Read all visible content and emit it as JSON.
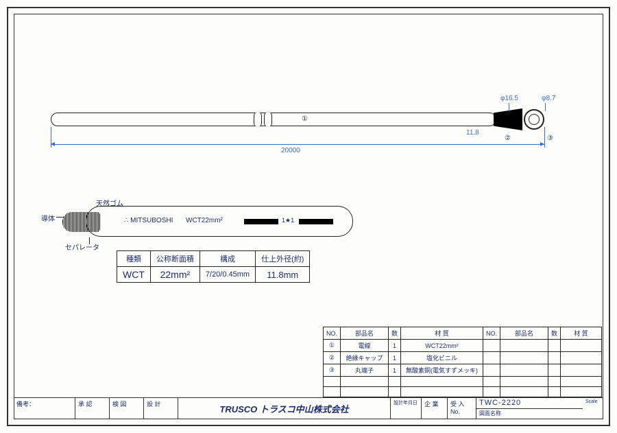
{
  "dimensions": {
    "length": "20000",
    "cap_len": "11.8",
    "dia1": "φ16.5",
    "dia2": "φ8.7"
  },
  "markers": {
    "m1": "①",
    "m2": "②",
    "m3": "③"
  },
  "cross_section": {
    "labels": {
      "conductor": "導体",
      "rubber": "天然ゴム",
      "separator": "セパレータ"
    },
    "print": {
      "brand": "∴ MITSUBOSHI",
      "spec": "WCT22mm²",
      "star": "1★1"
    }
  },
  "spec_table": {
    "headers": [
      "種類",
      "公称断面積",
      "構成",
      "仕上外径(約)"
    ],
    "row": [
      "WCT",
      "22mm²",
      "7/20/0.45mm",
      "11.8mm"
    ]
  },
  "bom": {
    "headers": [
      "NO.",
      "部品名",
      "数",
      "材 質",
      "NO.",
      "部品名",
      "数",
      "材 質"
    ],
    "rows": [
      [
        "①",
        "電線",
        "1",
        "WCT22mm²",
        "",
        "",
        "",
        ""
      ],
      [
        "②",
        "絶縁キャップ",
        "1",
        "塩化ビニル",
        "",
        "",
        "",
        ""
      ],
      [
        "③",
        "丸端子",
        "1",
        "無酸素銅(電気すずメッキ)",
        "",
        "",
        "",
        ""
      ],
      [
        "",
        "",
        "",
        "",
        "",
        "",
        "",
        ""
      ],
      [
        "",
        "",
        "",
        "",
        "",
        "",
        "",
        ""
      ]
    ]
  },
  "title_block": {
    "cells": [
      "備考：",
      "承 認",
      "検 図",
      "設 計"
    ],
    "company": "TRUSCO トラスコ中山株式会社",
    "right": [
      "設計年月日",
      "企 業",
      "受 入 No."
    ],
    "part_no": "TWC-2220",
    "drawing_name": "図面名称",
    "scale": "Scale"
  }
}
